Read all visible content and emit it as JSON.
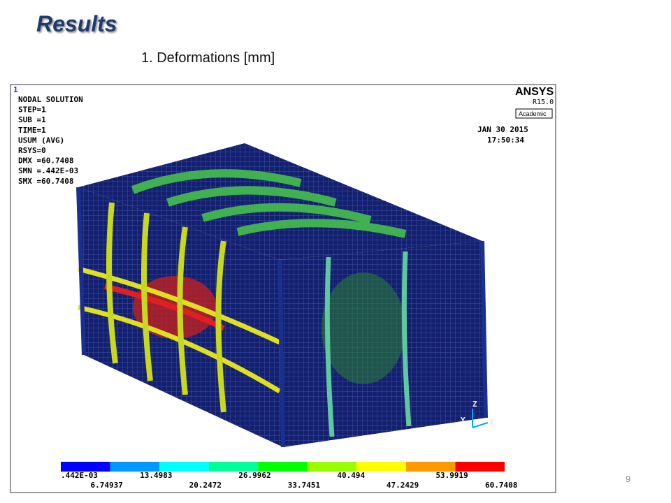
{
  "slide": {
    "title": "Results",
    "subtitle": "1. Deformations [mm]",
    "page_number": "9"
  },
  "viewport": {
    "window_number": "1",
    "ansys": "ANSYS",
    "release": "R15.0",
    "license": "Academic",
    "date": "JAN 30 2015",
    "time": "17:50:34",
    "info": [
      "NODAL SOLUTION",
      "STEP=1",
      "SUB =1",
      "TIME=1",
      "USUM      (AVG)",
      "RSYS=0",
      "DMX =60.7408",
      "SMN =.442E-03",
      "SMX =60.7408"
    ],
    "axes": {
      "z": "Z",
      "y": "Y",
      "x": "X"
    }
  },
  "legend": {
    "labels": [
      ".442E-03",
      "6.74937",
      "13.4983",
      "20.2472",
      "26.9962",
      "33.7451",
      "40.494",
      "47.2429",
      "53.9919",
      "60.7408"
    ],
    "colors": [
      "#0000ff",
      "#0099ff",
      "#00ffff",
      "#00ff99",
      "#00ff00",
      "#99ff00",
      "#ffff00",
      "#ff9900",
      "#ff0000"
    ]
  }
}
